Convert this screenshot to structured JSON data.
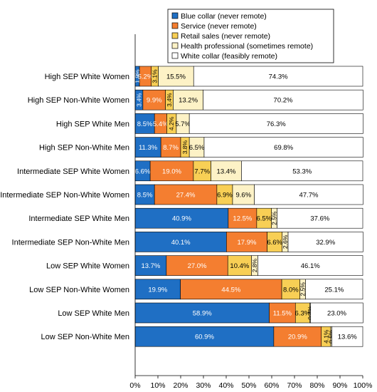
{
  "chart_data": {
    "type": "bar",
    "orientation": "horizontal",
    "stacked": true,
    "categories": [
      "High SEP White Women",
      "High SEP Non-White Women",
      "High SEP White Men",
      "High SEP Non-White Men",
      "Intermediate SEP White Women",
      "Intermediate SEP Non-White Women",
      "Intermediate SEP White Men",
      "Intermediate SEP Non-White Men",
      "Low SEP White Women",
      "Low SEP Non-White Women",
      "Low SEP White Men",
      "Low SEP Non-White Men"
    ],
    "series": [
      {
        "name": "Blue collar (never remote)",
        "color": "#1f6fc4",
        "values": [
          1.9,
          3.4,
          8.5,
          11.3,
          6.6,
          8.5,
          40.9,
          40.1,
          13.7,
          19.9,
          58.9,
          60.9
        ],
        "labels": [
          "1.9%",
          "3.4%",
          "8.5%",
          "11.3%",
          "6.6%",
          "8.5%",
          "40.9%",
          "40.1%",
          "13.7%",
          "19.9%",
          "58.9%",
          "60.9%"
        ]
      },
      {
        "name": "Service (never remote)",
        "color": "#f47e30",
        "values": [
          5.2,
          9.9,
          5.4,
          8.7,
          19.0,
          27.4,
          12.5,
          17.9,
          27.0,
          44.5,
          11.5,
          20.9
        ],
        "labels": [
          "5.2%",
          "9.9%",
          "5.4%",
          "8.7%",
          "19.0%",
          "27.4%",
          "12.5%",
          "17.9%",
          "27.0%",
          "44.5%",
          "11.5%",
          "20.9%"
        ]
      },
      {
        "name": "Retail sales (never remote)",
        "color": "#f8cf55",
        "values": [
          3.1,
          3.4,
          4.2,
          3.8,
          7.7,
          6.9,
          6.5,
          6.6,
          10.4,
          8.0,
          6.3,
          4.1
        ],
        "labels": [
          "3.1%",
          "3.4%",
          "4.2%",
          "3.8%",
          "7.7%",
          "6.9%",
          "6.5%",
          "6.6%",
          "10.4%",
          "8.0%",
          "6.3%",
          "4.1%"
        ]
      },
      {
        "name": "Health professional (sometimes remote)",
        "color": "#fdf2c6",
        "values": [
          15.5,
          13.2,
          5.7,
          6.5,
          13.4,
          9.6,
          2.5,
          2.6,
          2.8,
          2.5,
          0.4,
          0.5
        ],
        "labels": [
          "15.5%",
          "13.2%",
          "5.7%",
          "6.5%",
          "13.4%",
          "9.6%",
          "2.5%",
          "2.6%",
          "2.8%",
          "2.5%",
          "0.4%",
          "0.5%"
        ]
      },
      {
        "name": "White collar (feasibly remote)",
        "color": "#ffffff",
        "values": [
          74.3,
          70.2,
          76.3,
          69.8,
          53.3,
          47.7,
          37.6,
          32.9,
          46.1,
          25.1,
          23.0,
          13.6
        ],
        "labels": [
          "74.3%",
          "70.2%",
          "76.3%",
          "69.8%",
          "53.3%",
          "47.7%",
          "37.6%",
          "32.9%",
          "46.1%",
          "25.1%",
          "23.0%",
          "13.6%"
        ]
      }
    ],
    "xlim": [
      0,
      100
    ],
    "x_ticks": [
      "0%",
      "10%",
      "20%",
      "30%",
      "40%",
      "50%",
      "60%",
      "70%",
      "80%",
      "90%",
      "100%"
    ],
    "legend_position": "top",
    "grid": false
  }
}
